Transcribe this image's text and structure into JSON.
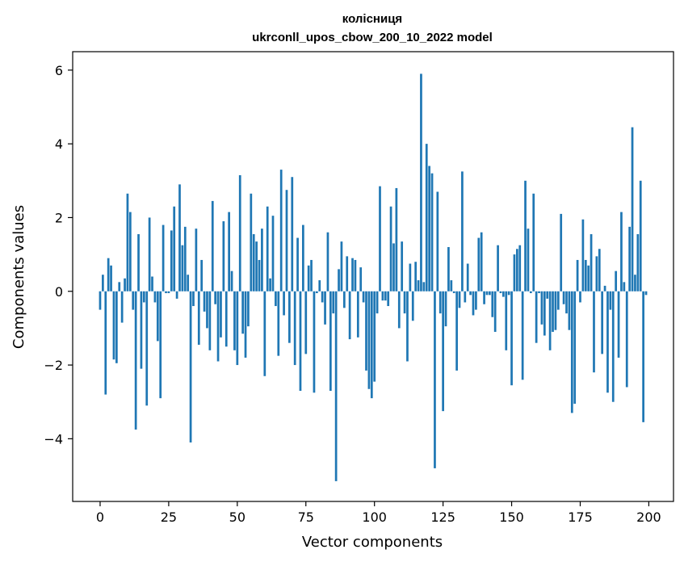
{
  "chart_data": {
    "type": "bar",
    "title": "колісниця",
    "subtitle": "ukrconll_upos_cbow_200_10_2022 model",
    "xlabel": "Vector components",
    "ylabel": "Components values",
    "xlim": [
      -10,
      209
    ],
    "ylim": [
      -5.7,
      6.5
    ],
    "xticks": [
      0,
      25,
      50,
      75,
      100,
      125,
      150,
      175,
      200
    ],
    "yticks": [
      -4,
      -2,
      0,
      2,
      4,
      6
    ],
    "ytick_labels": [
      "−4",
      "−2",
      "0",
      "2",
      "4",
      "6"
    ],
    "grid": false,
    "color": "#1f77b4",
    "values": [
      -0.5,
      0.45,
      -2.8,
      0.9,
      0.7,
      -1.85,
      -1.95,
      0.25,
      -0.85,
      0.35,
      2.65,
      2.15,
      -0.5,
      -3.75,
      1.55,
      -2.1,
      -0.3,
      -3.1,
      2.0,
      0.4,
      -0.3,
      -1.35,
      -2.9,
      1.8,
      -0.05,
      -0.05,
      1.65,
      2.3,
      -0.2,
      2.9,
      1.25,
      1.75,
      0.45,
      -4.1,
      -0.4,
      1.7,
      -1.45,
      0.85,
      -0.55,
      -1.0,
      -1.6,
      2.45,
      -0.35,
      -1.9,
      -1.25,
      1.9,
      -1.5,
      2.15,
      0.55,
      -1.6,
      -2.0,
      3.15,
      -1.15,
      -1.8,
      -0.95,
      2.65,
      1.55,
      1.35,
      0.85,
      1.7,
      -2.3,
      2.3,
      0.35,
      2.05,
      -0.4,
      -1.75,
      3.3,
      -0.65,
      2.75,
      -1.4,
      3.1,
      -2.0,
      1.45,
      -2.7,
      1.8,
      -1.7,
      0.7,
      0.85,
      -2.75,
      -0.05,
      0.3,
      -0.3,
      -0.9,
      1.6,
      -2.7,
      -0.6,
      -5.15,
      0.6,
      1.35,
      -0.45,
      0.95,
      -1.3,
      0.9,
      0.85,
      -1.25,
      0.65,
      -0.3,
      -2.15,
      -2.65,
      -2.9,
      -2.45,
      -0.6,
      2.85,
      -0.25,
      -0.25,
      -0.4,
      2.3,
      1.3,
      2.8,
      -1.0,
      1.35,
      -0.6,
      -1.9,
      0.75,
      -0.8,
      0.8,
      0.3,
      5.9,
      0.25,
      4.0,
      3.4,
      3.2,
      -4.8,
      2.7,
      -0.6,
      -3.25,
      -0.95,
      1.2,
      0.3,
      -0.05,
      -2.15,
      -0.45,
      3.25,
      -0.3,
      0.75,
      -0.1,
      -0.65,
      -0.5,
      1.45,
      1.6,
      -0.35,
      -0.1,
      -0.1,
      -0.7,
      -1.1,
      1.25,
      -0.05,
      -0.15,
      -1.6,
      -0.1,
      -2.55,
      1.0,
      1.15,
      1.25,
      -2.4,
      3.0,
      1.7,
      -0.05,
      2.65,
      -1.4,
      -0.05,
      -0.9,
      -1.2,
      -0.2,
      -1.6,
      -1.1,
      -1.05,
      -0.5,
      2.1,
      -0.35,
      -0.6,
      -1.05,
      -3.3,
      -3.05,
      0.85,
      -0.3,
      1.95,
      0.85,
      0.7,
      1.55,
      -2.2,
      0.95,
      1.15,
      -1.7,
      0.15,
      -2.75,
      -0.5,
      -3.0,
      0.55,
      -1.8,
      2.15,
      0.25,
      -2.6,
      1.75,
      4.45,
      0.45,
      1.55,
      3.0,
      -3.55,
      -0.1
    ]
  }
}
